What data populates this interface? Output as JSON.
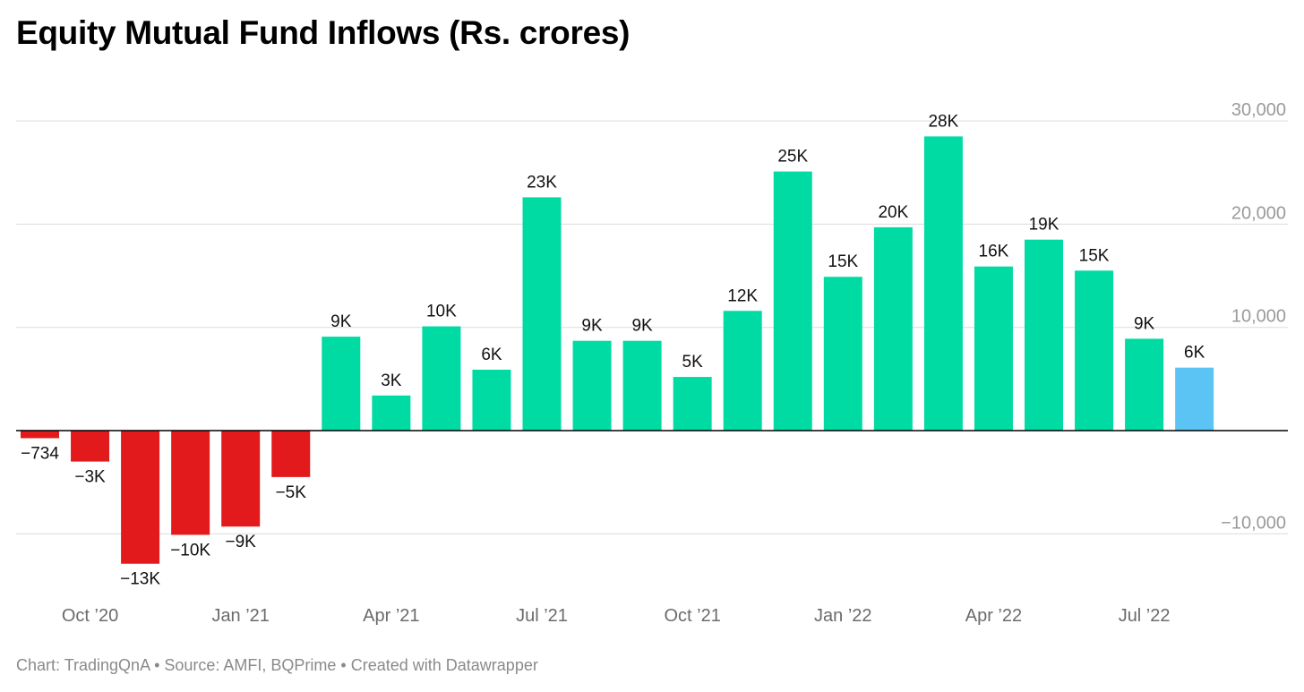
{
  "title": "Equity Mutual Fund Inflows (Rs. crores)",
  "footer": "Chart: TradingQnA • Source: AMFI, BQPrime • Created with Datawrapper",
  "chart_data": {
    "type": "bar",
    "title": "Equity Mutual Fund Inflows (Rs. crores)",
    "categories": [
      "Sep '20",
      "Oct '20",
      "Nov '20",
      "Dec '20",
      "Jan '21",
      "Feb '21",
      "Mar '21",
      "Apr '21",
      "May '21",
      "Jun '21",
      "Jul '21",
      "Aug '21",
      "Sep '21",
      "Oct '21",
      "Nov '21",
      "Dec '21",
      "Jan '22",
      "Feb '22",
      "Mar '22",
      "Apr '22",
      "May '22",
      "Jun '22",
      "Jul '22",
      "Aug '22"
    ],
    "values": [
      -734,
      -3000,
      -12900,
      -10100,
      -9300,
      -4500,
      9100,
      3400,
      10100,
      5900,
      22600,
      8700,
      8700,
      5200,
      11600,
      25100,
      14900,
      19700,
      28500,
      15900,
      18500,
      15500,
      8900,
      6100
    ],
    "value_labels": [
      "−734",
      "−3K",
      "−13K",
      "−10K",
      "−9K",
      "−5K",
      "9K",
      "3K",
      "10K",
      "6K",
      "23K",
      "9K",
      "9K",
      "5K",
      "12K",
      "25K",
      "15K",
      "20K",
      "28K",
      "16K",
      "19K",
      "15K",
      "9K",
      "6K"
    ],
    "colors": [
      "#e31a1c",
      "#e31a1c",
      "#e31a1c",
      "#e31a1c",
      "#e31a1c",
      "#e31a1c",
      "#00dba4",
      "#00dba4",
      "#00dba4",
      "#00dba4",
      "#00dba4",
      "#00dba4",
      "#00dba4",
      "#00dba4",
      "#00dba4",
      "#00dba4",
      "#00dba4",
      "#00dba4",
      "#00dba4",
      "#00dba4",
      "#00dba4",
      "#00dba4",
      "#00dba4",
      "#5bc4f5"
    ],
    "x_tick_labels": [
      {
        "label": "Oct ’20",
        "index": 1
      },
      {
        "label": "Jan ’21",
        "index": 4
      },
      {
        "label": "Apr ’21",
        "index": 7
      },
      {
        "label": "Jul ’21",
        "index": 10
      },
      {
        "label": "Oct ’21",
        "index": 13
      },
      {
        "label": "Jan ’22",
        "index": 16
      },
      {
        "label": "Apr ’22",
        "index": 19
      },
      {
        "label": "Jul ’22",
        "index": 22
      }
    ],
    "y_ticks": [
      {
        "value": 30000,
        "label": "30,000"
      },
      {
        "value": 20000,
        "label": "20,000"
      },
      {
        "value": 10000,
        "label": "10,000"
      },
      {
        "value": -10000,
        "label": "−10,000"
      }
    ],
    "ylim": [
      -15000,
      30000
    ],
    "grid": true,
    "legend": false
  }
}
